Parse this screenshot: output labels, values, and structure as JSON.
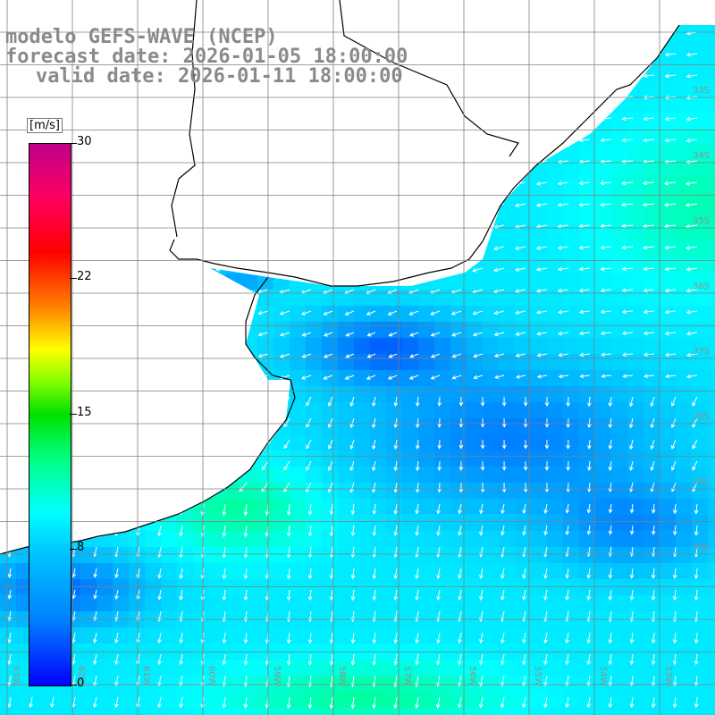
{
  "title": {
    "line1": "modelo GEFS-WAVE (NCEP)",
    "line2": "forecast date: 2026-01-05 18:00:00",
    "line3": "valid date: 2026-01-11 18:00:00"
  },
  "colorbar": {
    "units": "[m/s]",
    "ticks": [
      "30",
      "22",
      "15",
      "8",
      "0"
    ],
    "colors": [
      "#0000ff",
      "#00c8ff",
      "#00ffff",
      "#00e000",
      "#ffff00",
      "#ff0000",
      "#c0008a"
    ]
  },
  "grid": {
    "lat_labels": [
      "33S",
      "34S",
      "35S",
      "36S",
      "37S",
      "38S",
      "39S",
      "40S"
    ],
    "lon_labels": [
      "63W",
      "62W",
      "61W",
      "60W",
      "59W",
      "58W",
      "57W",
      "56W",
      "55W",
      "54W",
      "53W"
    ]
  },
  "style": {
    "land": "#ffffff",
    "coast": "#000000",
    "grid": "#808080",
    "arrow": "#ffffff",
    "title": "#8a8a8a"
  }
}
